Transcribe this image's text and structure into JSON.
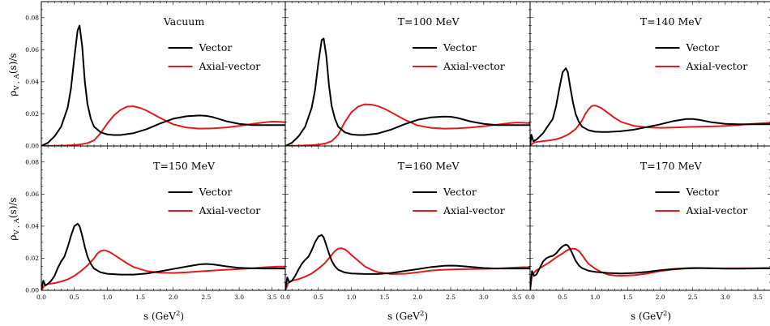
{
  "chart_data": {
    "type": "line",
    "ylabel": "ρV,A(s)/s",
    "ylabel_parts": {
      "rho": "ρ",
      "sub": "V , A",
      "rest": "(s)/s"
    },
    "xlabel": "s (GeV²)",
    "xlabel_parts": {
      "main": "s (GeV",
      "sup": "2",
      "close": ")"
    },
    "xlim": [
      0.0,
      3.7
    ],
    "ylim": [
      0.0,
      0.09
    ],
    "xticks": [
      "0.0",
      "0.5",
      "1.0",
      "1.5",
      "2.0",
      "2.5",
      "3.0",
      "3.5"
    ],
    "yticks": [
      "0.00",
      "0.02",
      "0.04",
      "0.06",
      "0.08"
    ],
    "legend_position": "upper-right",
    "colors": {
      "Vector": "#000000",
      "Axial-vector": "#e41a1c"
    },
    "panels": [
      {
        "title": "Vacuum",
        "series": [
          {
            "name": "Vector",
            "x": [
              0.0,
              0.1,
              0.2,
              0.3,
              0.4,
              0.45,
              0.5,
              0.55,
              0.58,
              0.62,
              0.66,
              0.7,
              0.75,
              0.8,
              0.9,
              1.0,
              1.1,
              1.2,
              1.4,
              1.6,
              1.8,
              2.0,
              2.2,
              2.4,
              2.5,
              2.6,
              2.8,
              3.0,
              3.2,
              3.4,
              3.6,
              3.7
            ],
            "y": [
              0.0,
              0.002,
              0.006,
              0.012,
              0.024,
              0.036,
              0.055,
              0.072,
              0.075,
              0.062,
              0.04,
              0.026,
              0.017,
              0.012,
              0.0085,
              0.0072,
              0.0068,
              0.0068,
              0.008,
              0.0105,
              0.014,
              0.017,
              0.0185,
              0.019,
              0.0188,
              0.018,
              0.0155,
              0.0138,
              0.013,
              0.013,
              0.013,
              0.013
            ]
          },
          {
            "name": "Axial-vector",
            "x": [
              0.0,
              0.2,
              0.4,
              0.5,
              0.6,
              0.7,
              0.8,
              0.9,
              1.0,
              1.1,
              1.2,
              1.3,
              1.4,
              1.5,
              1.6,
              1.8,
              2.0,
              2.2,
              2.4,
              2.6,
              2.8,
              3.0,
              3.2,
              3.4,
              3.5,
              3.6,
              3.7
            ],
            "y": [
              0.0,
              0.0001,
              0.0003,
              0.0006,
              0.001,
              0.0018,
              0.0035,
              0.008,
              0.014,
              0.019,
              0.0225,
              0.0245,
              0.0247,
              0.0237,
              0.022,
              0.0175,
              0.0135,
              0.0115,
              0.0108,
              0.011,
              0.0115,
              0.0125,
              0.0138,
              0.0148,
              0.0152,
              0.0151,
              0.0148
            ]
          }
        ]
      },
      {
        "title": "T=100 MeV",
        "series": [
          {
            "name": "Vector",
            "x": [
              0.0,
              0.1,
              0.2,
              0.3,
              0.4,
              0.45,
              0.5,
              0.55,
              0.58,
              0.62,
              0.66,
              0.7,
              0.75,
              0.8,
              0.9,
              1.0,
              1.1,
              1.2,
              1.4,
              1.6,
              1.8,
              2.0,
              2.2,
              2.4,
              2.5,
              2.6,
              2.8,
              3.0,
              3.2,
              3.4,
              3.6,
              3.7
            ],
            "y": [
              0.0,
              0.002,
              0.006,
              0.012,
              0.024,
              0.035,
              0.052,
              0.066,
              0.067,
              0.056,
              0.038,
              0.025,
              0.017,
              0.012,
              0.0085,
              0.0072,
              0.0068,
              0.0068,
              0.0078,
              0.0102,
              0.0135,
              0.0163,
              0.0178,
              0.0183,
              0.0182,
              0.0175,
              0.0153,
              0.0138,
              0.013,
              0.013,
              0.013,
              0.013
            ]
          },
          {
            "name": "Axial-vector",
            "x": [
              0.0,
              0.2,
              0.4,
              0.5,
              0.6,
              0.7,
              0.8,
              0.85,
              0.9,
              1.0,
              1.1,
              1.2,
              1.3,
              1.4,
              1.5,
              1.6,
              1.8,
              2.0,
              2.2,
              2.4,
              2.6,
              2.8,
              3.0,
              3.2,
              3.4,
              3.5,
              3.6,
              3.7
            ],
            "y": [
              0.0,
              0.0002,
              0.0005,
              0.0008,
              0.0015,
              0.003,
              0.007,
              0.011,
              0.015,
              0.021,
              0.0245,
              0.026,
              0.0258,
              0.0248,
              0.0232,
              0.021,
              0.0165,
              0.0128,
              0.0113,
              0.0108,
              0.011,
              0.0115,
              0.0123,
              0.0133,
              0.0143,
              0.0146,
              0.0145,
              0.0142
            ]
          }
        ]
      },
      {
        "title": "T=140 MeV",
        "series": [
          {
            "name": "Vector",
            "x": [
              0.0,
              0.02,
              0.05,
              0.1,
              0.2,
              0.3,
              0.35,
              0.4,
              0.45,
              0.5,
              0.55,
              0.58,
              0.62,
              0.66,
              0.7,
              0.75,
              0.8,
              0.9,
              1.0,
              1.1,
              1.2,
              1.4,
              1.6,
              1.8,
              2.0,
              2.2,
              2.4,
              2.5,
              2.6,
              2.8,
              3.0,
              3.2,
              3.4,
              3.6,
              3.7
            ],
            "y": [
              0.0,
              0.007,
              0.003,
              0.004,
              0.008,
              0.014,
              0.017,
              0.025,
              0.036,
              0.046,
              0.0485,
              0.046,
              0.036,
              0.027,
              0.02,
              0.015,
              0.012,
              0.0098,
              0.0089,
              0.0087,
              0.0087,
              0.0092,
              0.0102,
              0.0118,
              0.0135,
              0.0155,
              0.0168,
              0.0168,
              0.0163,
              0.0147,
              0.0138,
              0.0135,
              0.0135,
              0.0135,
              0.0135
            ]
          },
          {
            "name": "Axial-vector",
            "x": [
              0.0,
              0.05,
              0.1,
              0.2,
              0.3,
              0.4,
              0.5,
              0.6,
              0.7,
              0.8,
              0.85,
              0.9,
              0.95,
              1.0,
              1.05,
              1.1,
              1.2,
              1.3,
              1.4,
              1.6,
              1.8,
              2.0,
              2.2,
              2.4,
              2.6,
              2.8,
              3.0,
              3.2,
              3.4,
              3.6,
              3.7
            ],
            "y": [
              0.0,
              0.002,
              0.0025,
              0.003,
              0.0035,
              0.0042,
              0.0055,
              0.0075,
              0.0105,
              0.016,
              0.02,
              0.023,
              0.025,
              0.0252,
              0.0245,
              0.0235,
              0.0205,
              0.0175,
              0.015,
              0.0125,
              0.0116,
              0.0113,
              0.0115,
              0.0118,
              0.012,
              0.0122,
              0.0125,
              0.013,
              0.0137,
              0.0143,
              0.0145
            ]
          }
        ]
      },
      {
        "title": "T=150 MeV",
        "series": [
          {
            "name": "Vector",
            "x": [
              0.0,
              0.03,
              0.06,
              0.1,
              0.15,
              0.2,
              0.25,
              0.3,
              0.35,
              0.4,
              0.45,
              0.5,
              0.55,
              0.58,
              0.62,
              0.66,
              0.7,
              0.75,
              0.8,
              0.9,
              1.0,
              1.2,
              1.4,
              1.6,
              1.8,
              2.0,
              2.2,
              2.4,
              2.5,
              2.6,
              2.8,
              3.0,
              3.2,
              3.4,
              3.6,
              3.7
            ],
            "y": [
              0.0,
              0.006,
              0.003,
              0.004,
              0.006,
              0.009,
              0.014,
              0.018,
              0.021,
              0.027,
              0.034,
              0.04,
              0.0415,
              0.04,
              0.034,
              0.027,
              0.021,
              0.0165,
              0.0135,
              0.0112,
              0.0103,
              0.0098,
              0.0098,
              0.0105,
              0.0118,
              0.0133,
              0.0148,
              0.0162,
              0.0164,
              0.0162,
              0.015,
              0.014,
              0.0137,
              0.0136,
              0.0136,
              0.0136
            ]
          },
          {
            "name": "Axial-vector",
            "x": [
              0.0,
              0.05,
              0.1,
              0.2,
              0.3,
              0.4,
              0.5,
              0.6,
              0.7,
              0.8,
              0.85,
              0.9,
              0.95,
              1.0,
              1.05,
              1.1,
              1.2,
              1.3,
              1.4,
              1.6,
              1.8,
              2.0,
              2.2,
              2.4,
              2.6,
              2.8,
              3.0,
              3.2,
              3.4,
              3.6,
              3.7
            ],
            "y": [
              0.0,
              0.003,
              0.004,
              0.0045,
              0.0055,
              0.0068,
              0.009,
              0.012,
              0.0155,
              0.02,
              0.023,
              0.0245,
              0.025,
              0.0245,
              0.0235,
              0.0222,
              0.0195,
              0.0168,
              0.0145,
              0.012,
              0.011,
              0.0108,
              0.0112,
              0.0118,
              0.0123,
              0.0128,
              0.0133,
              0.0138,
              0.0144,
              0.0148,
              0.0148
            ]
          }
        ]
      },
      {
        "title": "T=160 MeV",
        "series": [
          {
            "name": "Vector",
            "x": [
              0.0,
              0.03,
              0.06,
              0.1,
              0.15,
              0.2,
              0.25,
              0.3,
              0.35,
              0.4,
              0.45,
              0.5,
              0.55,
              0.58,
              0.62,
              0.66,
              0.7,
              0.75,
              0.8,
              0.9,
              1.0,
              1.2,
              1.4,
              1.6,
              1.8,
              2.0,
              2.2,
              2.4,
              2.5,
              2.6,
              2.8,
              3.0,
              3.2,
              3.4,
              3.6,
              3.7
            ],
            "y": [
              0.0,
              0.008,
              0.005,
              0.006,
              0.009,
              0.013,
              0.0165,
              0.019,
              0.021,
              0.025,
              0.03,
              0.0335,
              0.0345,
              0.033,
              0.028,
              0.023,
              0.0185,
              0.015,
              0.0128,
              0.0111,
              0.0105,
              0.0102,
              0.0102,
              0.0108,
              0.012,
              0.0132,
              0.0145,
              0.0153,
              0.0154,
              0.0153,
              0.0146,
              0.0139,
              0.0136,
              0.0136,
              0.0136,
              0.0136
            ]
          },
          {
            "name": "Axial-vector",
            "x": [
              0.0,
              0.05,
              0.1,
              0.2,
              0.3,
              0.4,
              0.5,
              0.6,
              0.7,
              0.75,
              0.8,
              0.85,
              0.9,
              0.95,
              1.0,
              1.1,
              1.2,
              1.3,
              1.4,
              1.6,
              1.8,
              2.0,
              2.2,
              2.4,
              2.6,
              2.8,
              3.0,
              3.2,
              3.4,
              3.6,
              3.7
            ],
            "y": [
              0.0,
              0.005,
              0.006,
              0.007,
              0.0085,
              0.0105,
              0.0135,
              0.017,
              0.022,
              0.0245,
              0.026,
              0.0262,
              0.0255,
              0.024,
              0.022,
              0.0185,
              0.015,
              0.0128,
              0.0113,
              0.0102,
              0.0103,
              0.0112,
              0.0123,
              0.0128,
              0.0131,
              0.0133,
              0.0134,
              0.0136,
              0.014,
              0.0144,
              0.0144
            ]
          }
        ]
      },
      {
        "title": "T=170 MeV",
        "series": [
          {
            "name": "Vector",
            "x": [
              0.0,
              0.03,
              0.06,
              0.1,
              0.15,
              0.2,
              0.25,
              0.3,
              0.35,
              0.4,
              0.45,
              0.5,
              0.55,
              0.58,
              0.62,
              0.66,
              0.7,
              0.75,
              0.8,
              0.9,
              1.0,
              1.2,
              1.4,
              1.6,
              1.8,
              2.0,
              2.2,
              2.4,
              2.5,
              2.6,
              2.8,
              3.0,
              3.2,
              3.4,
              3.6,
              3.7
            ],
            "y": [
              0.0,
              0.012,
              0.009,
              0.01,
              0.014,
              0.018,
              0.02,
              0.021,
              0.0215,
              0.023,
              0.0255,
              0.0275,
              0.0285,
              0.028,
              0.0255,
              0.022,
              0.0185,
              0.0155,
              0.0138,
              0.0122,
              0.0115,
              0.0108,
              0.0105,
              0.0108,
              0.0115,
              0.0125,
              0.0133,
              0.0138,
              0.0139,
              0.0139,
              0.0137,
              0.0135,
              0.0135,
              0.0136,
              0.0137,
              0.0137
            ]
          },
          {
            "name": "Axial-vector",
            "x": [
              0.0,
              0.03,
              0.06,
              0.1,
              0.2,
              0.3,
              0.4,
              0.5,
              0.55,
              0.6,
              0.65,
              0.7,
              0.75,
              0.8,
              0.85,
              0.9,
              1.0,
              1.1,
              1.2,
              1.3,
              1.4,
              1.6,
              1.8,
              2.0,
              2.2,
              2.4,
              2.6,
              2.8,
              3.0,
              3.2,
              3.4,
              3.6,
              3.7
            ],
            "y": [
              0.0,
              0.01,
              0.011,
              0.0125,
              0.015,
              0.0175,
              0.0205,
              0.023,
              0.0245,
              0.0255,
              0.026,
              0.0258,
              0.0245,
              0.022,
              0.019,
              0.0165,
              0.0135,
              0.0112,
              0.0098,
              0.0092,
              0.0091,
              0.0094,
              0.0105,
              0.012,
              0.013,
              0.0136,
              0.0138,
              0.0138,
              0.0137,
              0.0137,
              0.0138,
              0.0139,
              0.0139
            ]
          }
        ]
      }
    ]
  }
}
